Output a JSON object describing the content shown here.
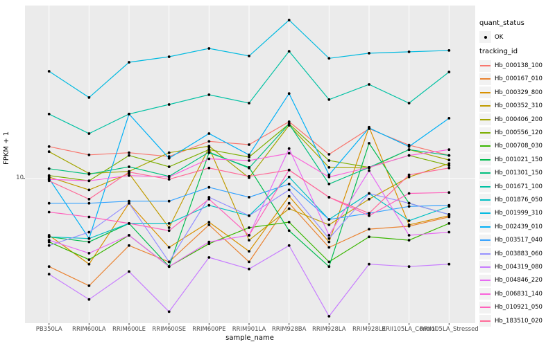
{
  "axes": {
    "y_title": "FPKM + 1",
    "x_title": "sample_name",
    "y_tick_label": "10"
  },
  "legend": {
    "quant_title": "quant_status",
    "quant_items": [
      {
        "label": "OK",
        "marker": "point"
      }
    ],
    "tracking_title": "tracking_id"
  },
  "chart_data": {
    "type": "line",
    "title": "",
    "xlabel": "sample_name",
    "ylabel": "FPKM + 1",
    "y_scale": "log10",
    "y_tick_values": [
      10
    ],
    "ylim_approx": [
      1.4,
      97
    ],
    "grid": "white major gridlines on gray panel",
    "panel_background": "#EBEBEB",
    "legend_position": "right",
    "marker": "small black point on every vertex",
    "quant_status_all": "OK",
    "categories": [
      "PB350LA",
      "RRIM600LA",
      "RRIM600LE",
      "RRIM600SE",
      "RRIM600PE",
      "RRIM901LA",
      "RRIM928BA",
      "RRIM928LA",
      "RRIM928LE",
      "RRII105LA_Control",
      "RRII105LA_Stressed"
    ],
    "series": [
      {
        "name": "Hb_000138_100",
        "color": "#F8766D",
        "values": [
          15.3,
          13.7,
          14.1,
          13.4,
          16.4,
          15.7,
          21.3,
          13.8,
          19.4,
          15.6,
          13.6
        ]
      },
      {
        "name": "Hb_000167_010",
        "color": "#EA8331",
        "values": [
          3.1,
          2.4,
          4.1,
          3.3,
          5.4,
          3.3,
          7.2,
          4.0,
          5.1,
          5.3,
          6.0
        ]
      },
      {
        "name": "Hb_000329_800",
        "color": "#D89000",
        "values": [
          4.7,
          3.2,
          7.2,
          4.0,
          5.6,
          3.8,
          7.9,
          4.3,
          19.8,
          5.4,
          6.1
        ]
      },
      {
        "name": "Hb_000352_310",
        "color": "#C09B00",
        "values": [
          10.2,
          8.6,
          10.7,
          5.2,
          15.1,
          4.4,
          6.7,
          5.4,
          7.6,
          10.2,
          12.2
        ]
      },
      {
        "name": "Hb_000406_200",
        "color": "#A3A500",
        "values": [
          14.3,
          10.7,
          11.0,
          14.1,
          15.4,
          10.1,
          20.3,
          11.6,
          11.5,
          14.7,
          12.8
        ]
      },
      {
        "name": "Hb_000556_120",
        "color": "#7CAE00",
        "values": [
          10.4,
          9.7,
          13.6,
          11.7,
          14.7,
          13.3,
          20.7,
          12.7,
          11.6,
          13.6,
          11.9
        ]
      },
      {
        "name": "Hb_000708_030",
        "color": "#39B600",
        "values": [
          4.3,
          3.4,
          4.7,
          3.1,
          4.2,
          5.2,
          5.6,
          3.3,
          4.6,
          4.4,
          5.5
        ]
      },
      {
        "name": "Hb_001021_150",
        "color": "#00BB4E",
        "values": [
          4.6,
          4.3,
          5.5,
          3.1,
          14.1,
          11.6,
          5.0,
          3.1,
          16.0,
          7.2,
          6.2
        ]
      },
      {
        "name": "Hb_001301_150",
        "color": "#00BF7D",
        "values": [
          11.4,
          10.6,
          11.7,
          10.3,
          14.2,
          11.5,
          20.7,
          9.3,
          11.6,
          14.7,
          13.6
        ]
      },
      {
        "name": "Hb_001671_100",
        "color": "#00C1A3",
        "values": [
          23.6,
          18.2,
          23.6,
          26.8,
          30.5,
          27.3,
          54.4,
          28.6,
          35.0,
          27.3,
          41.3
        ]
      },
      {
        "name": "Hb_001876_050",
        "color": "#00BFC4",
        "values": [
          4.6,
          4.5,
          5.5,
          5.5,
          7.0,
          6.1,
          10.2,
          5.8,
          8.2,
          5.7,
          6.9
        ]
      },
      {
        "name": "Hb_001999_310",
        "color": "#00BAE0",
        "values": [
          41.7,
          29.4,
          47.0,
          50.6,
          56.5,
          51.1,
          82.4,
          49.5,
          53.0,
          54.0,
          55.0
        ]
      },
      {
        "name": "Hb_002439_010",
        "color": "#00B0F6",
        "values": [
          10.0,
          4.5,
          23.6,
          13.1,
          18.2,
          13.7,
          31.0,
          10.5,
          19.6,
          15.3,
          22.3
        ]
      },
      {
        "name": "Hb_003517_040",
        "color": "#35A2FF",
        "values": [
          7.2,
          7.2,
          7.4,
          7.4,
          8.9,
          7.8,
          9.3,
          5.8,
          6.3,
          6.9,
          7.0
        ]
      },
      {
        "name": "Hb_003883_060",
        "color": "#9590FF",
        "values": [
          4.1,
          4.9,
          7.2,
          3.3,
          7.8,
          6.1,
          8.6,
          4.5,
          8.2,
          7.2,
          6.2
        ]
      },
      {
        "name": "Hb_004319_080",
        "color": "#C77CFF",
        "values": [
          2.8,
          2.0,
          2.9,
          1.7,
          3.5,
          3.0,
          4.1,
          1.6,
          3.2,
          3.1,
          3.2
        ]
      },
      {
        "name": "Hb_004846_220",
        "color": "#E76BF3",
        "values": [
          4.4,
          3.7,
          4.7,
          3.1,
          4.3,
          4.7,
          14.9,
          4.7,
          11.1,
          4.7,
          4.9
        ]
      },
      {
        "name": "Hb_006831_140",
        "color": "#FA62DB",
        "values": [
          9.9,
          9.7,
          10.4,
          10.2,
          13.0,
          12.7,
          14.0,
          10.2,
          11.6,
          13.6,
          14.7
        ]
      },
      {
        "name": "Hb_010921_050",
        "color": "#FF62BC",
        "values": [
          6.4,
          6.0,
          5.5,
          5.0,
          7.6,
          4.7,
          11.2,
          7.8,
          6.1,
          8.2,
          8.3
        ]
      },
      {
        "name": "Hb_183510_020",
        "color": "#FF6A98",
        "values": [
          9.7,
          7.6,
          10.9,
          9.9,
          11.5,
          10.3,
          11.2,
          7.8,
          6.3,
          10.5,
          11.5
        ]
      }
    ]
  }
}
